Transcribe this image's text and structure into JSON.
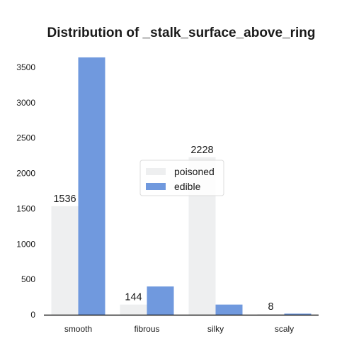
{
  "chart_data": {
    "type": "bar",
    "title": "Distribution of _stalk_surface_above_ring",
    "xlabel": "",
    "ylabel": "",
    "categories": [
      "smooth",
      "fibrous",
      "silky",
      "scaly"
    ],
    "series": [
      {
        "name": "poisoned",
        "color": "#eeeff0",
        "values": [
          1536,
          144,
          2228,
          8
        ],
        "data_labels": [
          "1536",
          "144",
          "2228",
          "8"
        ]
      },
      {
        "name": "edible",
        "color": "#7099de",
        "values": [
          3640,
          400,
          144,
          16
        ]
      }
    ],
    "ylim": [
      0,
      3750
    ],
    "yticks": [
      0,
      500,
      1000,
      1500,
      2000,
      2500,
      3000,
      3500
    ],
    "grid": false,
    "legend_position": "center"
  }
}
